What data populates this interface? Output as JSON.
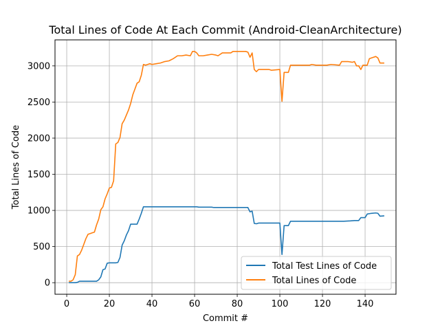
{
  "chart_data": {
    "type": "line",
    "title": "Total Lines of Code At Each Commit (Android-CleanArchitecture)",
    "xlabel": "Commit #",
    "ylabel": "Total Lines of Code",
    "xlim": [
      -5.5,
      154.5
    ],
    "ylim": [
      -160,
      3360
    ],
    "xticks": [
      0,
      20,
      40,
      60,
      80,
      100,
      120,
      140
    ],
    "yticks": [
      0,
      500,
      1000,
      1500,
      2000,
      2500,
      3000
    ],
    "grid": true,
    "legend_position": "lower right",
    "series": [
      {
        "name": "Total Test Lines of Code",
        "color": "#1f77b4",
        "points": [
          [
            1,
            0
          ],
          [
            2,
            0
          ],
          [
            3,
            0
          ],
          [
            4,
            0
          ],
          [
            5,
            5
          ],
          [
            6,
            20
          ],
          [
            7,
            20
          ],
          [
            8,
            20
          ],
          [
            9,
            20
          ],
          [
            10,
            20
          ],
          [
            11,
            20
          ],
          [
            12,
            20
          ],
          [
            13,
            20
          ],
          [
            14,
            20
          ],
          [
            15,
            40
          ],
          [
            16,
            80
          ],
          [
            17,
            180
          ],
          [
            18,
            190
          ],
          [
            19,
            270
          ],
          [
            20,
            275
          ],
          [
            21,
            275
          ],
          [
            22,
            275
          ],
          [
            23,
            275
          ],
          [
            24,
            280
          ],
          [
            25,
            350
          ],
          [
            26,
            520
          ],
          [
            27,
            580
          ],
          [
            28,
            660
          ],
          [
            29,
            720
          ],
          [
            30,
            810
          ],
          [
            31,
            810
          ],
          [
            32,
            810
          ],
          [
            33,
            810
          ],
          [
            34,
            880
          ],
          [
            35,
            960
          ],
          [
            36,
            1050
          ],
          [
            37,
            1050
          ],
          [
            38,
            1050
          ],
          [
            40,
            1050
          ],
          [
            50,
            1050
          ],
          [
            60,
            1050
          ],
          [
            61,
            1050
          ],
          [
            62,
            1045
          ],
          [
            68,
            1045
          ],
          [
            69,
            1040
          ],
          [
            75,
            1040
          ],
          [
            85,
            1040
          ],
          [
            86,
            980
          ],
          [
            87,
            990
          ],
          [
            88,
            820
          ],
          [
            89,
            815
          ],
          [
            90,
            825
          ],
          [
            95,
            825
          ],
          [
            100,
            825
          ],
          [
            101,
            390
          ],
          [
            102,
            790
          ],
          [
            104,
            790
          ],
          [
            105,
            850
          ],
          [
            110,
            850
          ],
          [
            120,
            850
          ],
          [
            130,
            850
          ],
          [
            133,
            855
          ],
          [
            135,
            860
          ],
          [
            137,
            860
          ],
          [
            138,
            900
          ],
          [
            140,
            900
          ],
          [
            141,
            950
          ],
          [
            143,
            960
          ],
          [
            145,
            965
          ],
          [
            146,
            960
          ],
          [
            147,
            920
          ],
          [
            149,
            925
          ]
        ]
      },
      {
        "name": "Total Lines of Code",
        "color": "#ff7f0e",
        "points": [
          [
            1,
            20
          ],
          [
            2,
            20
          ],
          [
            3,
            40
          ],
          [
            4,
            110
          ],
          [
            5,
            370
          ],
          [
            6,
            390
          ],
          [
            7,
            450
          ],
          [
            8,
            530
          ],
          [
            9,
            610
          ],
          [
            10,
            670
          ],
          [
            11,
            680
          ],
          [
            12,
            690
          ],
          [
            13,
            700
          ],
          [
            14,
            800
          ],
          [
            15,
            880
          ],
          [
            16,
            1010
          ],
          [
            17,
            1050
          ],
          [
            18,
            1160
          ],
          [
            19,
            1230
          ],
          [
            20,
            1310
          ],
          [
            21,
            1320
          ],
          [
            22,
            1410
          ],
          [
            23,
            1920
          ],
          [
            24,
            1940
          ],
          [
            25,
            2010
          ],
          [
            26,
            2200
          ],
          [
            27,
            2250
          ],
          [
            28,
            2320
          ],
          [
            29,
            2390
          ],
          [
            30,
            2480
          ],
          [
            31,
            2600
          ],
          [
            32,
            2680
          ],
          [
            33,
            2760
          ],
          [
            34,
            2780
          ],
          [
            35,
            2870
          ],
          [
            36,
            3020
          ],
          [
            37,
            3010
          ],
          [
            38,
            3020
          ],
          [
            39,
            3030
          ],
          [
            40,
            3020
          ],
          [
            42,
            3030
          ],
          [
            44,
            3040
          ],
          [
            46,
            3060
          ],
          [
            48,
            3070
          ],
          [
            50,
            3100
          ],
          [
            52,
            3140
          ],
          [
            54,
            3140
          ],
          [
            56,
            3150
          ],
          [
            58,
            3140
          ],
          [
            59,
            3200
          ],
          [
            60,
            3200
          ],
          [
            61,
            3180
          ],
          [
            62,
            3140
          ],
          [
            64,
            3140
          ],
          [
            66,
            3150
          ],
          [
            68,
            3160
          ],
          [
            70,
            3150
          ],
          [
            71,
            3140
          ],
          [
            73,
            3180
          ],
          [
            75,
            3180
          ],
          [
            77,
            3180
          ],
          [
            78,
            3200
          ],
          [
            80,
            3200
          ],
          [
            82,
            3200
          ],
          [
            84,
            3200
          ],
          [
            85,
            3190
          ],
          [
            86,
            3120
          ],
          [
            87,
            3180
          ],
          [
            88,
            2950
          ],
          [
            89,
            2920
          ],
          [
            90,
            2950
          ],
          [
            95,
            2950
          ],
          [
            96,
            2940
          ],
          [
            100,
            2950
          ],
          [
            101,
            2510
          ],
          [
            102,
            2910
          ],
          [
            104,
            2910
          ],
          [
            105,
            3010
          ],
          [
            110,
            3010
          ],
          [
            114,
            3010
          ],
          [
            115,
            3020
          ],
          [
            117,
            3010
          ],
          [
            120,
            3010
          ],
          [
            122,
            3010
          ],
          [
            124,
            3020
          ],
          [
            128,
            3010
          ],
          [
            129,
            3060
          ],
          [
            132,
            3060
          ],
          [
            134,
            3050
          ],
          [
            135,
            3060
          ],
          [
            136,
            3000
          ],
          [
            137,
            3000
          ],
          [
            138,
            2950
          ],
          [
            139,
            3010
          ],
          [
            141,
            3010
          ],
          [
            142,
            3100
          ],
          [
            143,
            3110
          ],
          [
            145,
            3130
          ],
          [
            146,
            3110
          ],
          [
            147,
            3040
          ],
          [
            149,
            3040
          ]
        ]
      }
    ]
  }
}
